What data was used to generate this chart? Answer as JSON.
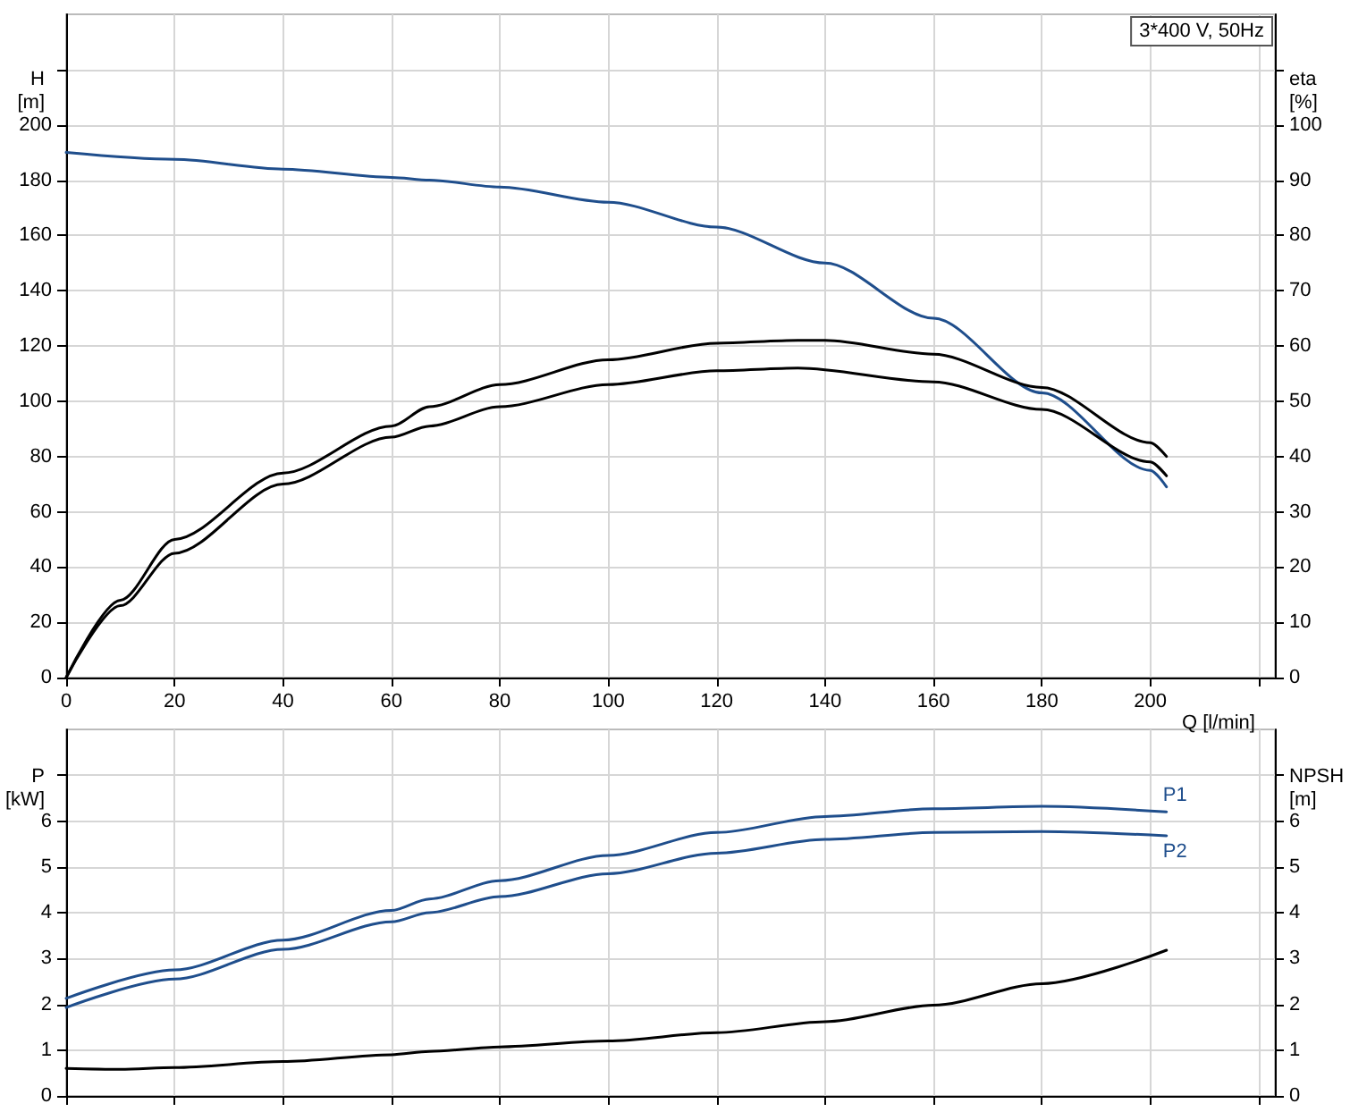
{
  "chart_data": [
    {
      "type": "line",
      "xlabel": "Q [l/min]",
      "ylabel": "H\n[m]",
      "y2label": "eta\n[%]",
      "annotations": [
        "3*400 V, 50Hz"
      ],
      "xlim": [
        0,
        223
      ],
      "xticks": [
        0,
        20,
        40,
        60,
        80,
        100,
        120,
        140,
        160,
        180,
        200,
        {
          "value": 220,
          "label": null
        }
      ],
      "ylim": [
        0,
        240
      ],
      "yticks": [
        0,
        20,
        40,
        60,
        80,
        100,
        120,
        140,
        160,
        180,
        200,
        {
          "value": 220,
          "label": null
        }
      ],
      "y2lim": [
        0,
        120
      ],
      "y2ticks": [
        0,
        10,
        20,
        30,
        40,
        50,
        60,
        70,
        80,
        90,
        100,
        {
          "value": 110,
          "label": null
        }
      ],
      "grid": true,
      "legend": false,
      "marker": "none",
      "line_style": "solid",
      "series": [
        {
          "color": "#1f4e8c",
          "x": [
            0,
            20,
            40,
            60,
            67,
            80,
            100,
            120,
            140,
            160,
            180,
            200,
            203
          ],
          "values": [
            190,
            187.5,
            184,
            181,
            180,
            177.5,
            172,
            163,
            150,
            130,
            103,
            75,
            69
          ]
        },
        {
          "color": "#000000",
          "axis": "y2",
          "x": [
            0,
            10,
            20,
            40,
            60,
            67,
            80,
            100,
            120,
            135,
            140,
            160,
            180,
            200,
            203
          ],
          "values": [
            0,
            14,
            25,
            37,
            45.5,
            49,
            53,
            57.5,
            60.5,
            61,
            61,
            58.5,
            52.5,
            42.5,
            40
          ]
        },
        {
          "color": "#000000",
          "axis": "y2",
          "x": [
            0,
            10,
            20,
            40,
            60,
            67,
            80,
            100,
            120,
            135,
            160,
            180,
            200,
            203
          ],
          "values": [
            0,
            13,
            22.5,
            35,
            43.5,
            45.5,
            49,
            53,
            55.5,
            56,
            53.5,
            48.5,
            39,
            36.5
          ]
        }
      ]
    },
    {
      "type": "line",
      "ylabel": "P\n[kW]",
      "y2label": "NPSH\n[m]",
      "tick_labels": "y",
      "xlim": [
        0,
        223
      ],
      "xticks": [
        0,
        20,
        40,
        60,
        80,
        100,
        120,
        140,
        160,
        180,
        200,
        {
          "value": 220,
          "label": null
        }
      ],
      "ylim": [
        0,
        8
      ],
      "yticks": [
        0,
        1,
        2,
        3,
        4,
        5,
        6,
        {
          "value": 7,
          "label": null
        }
      ],
      "y2lim": [
        0,
        8
      ],
      "y2ticks": [
        0,
        1,
        2,
        3,
        4,
        5,
        6,
        {
          "value": 7,
          "label": null
        }
      ],
      "grid": true,
      "legend": false,
      "marker": "none",
      "line_style": "solid",
      "series": [
        {
          "name": "P1",
          "color": "#1f4e8c",
          "x": [
            0,
            20,
            40,
            60,
            67,
            80,
            100,
            120,
            140,
            160,
            180,
            203
          ],
          "values": [
            2.13,
            2.75,
            3.4,
            4.05,
            4.3,
            4.7,
            5.25,
            5.75,
            6.1,
            6.27,
            6.32,
            6.2
          ]
        },
        {
          "name": "P2",
          "color": "#1f4e8c",
          "x": [
            0,
            20,
            40,
            60,
            67,
            80,
            100,
            120,
            140,
            160,
            180,
            203
          ],
          "values": [
            1.93,
            2.55,
            3.2,
            3.8,
            4.0,
            4.35,
            4.85,
            5.3,
            5.6,
            5.75,
            5.77,
            5.68
          ]
        },
        {
          "color": "#000000",
          "axis": "y2",
          "x": [
            0,
            10,
            20,
            40,
            60,
            67,
            80,
            100,
            120,
            140,
            160,
            180,
            203
          ],
          "values": [
            0.6,
            0.58,
            0.62,
            0.75,
            0.9,
            0.97,
            1.07,
            1.2,
            1.38,
            1.62,
            1.98,
            2.45,
            3.18
          ]
        }
      ]
    }
  ]
}
